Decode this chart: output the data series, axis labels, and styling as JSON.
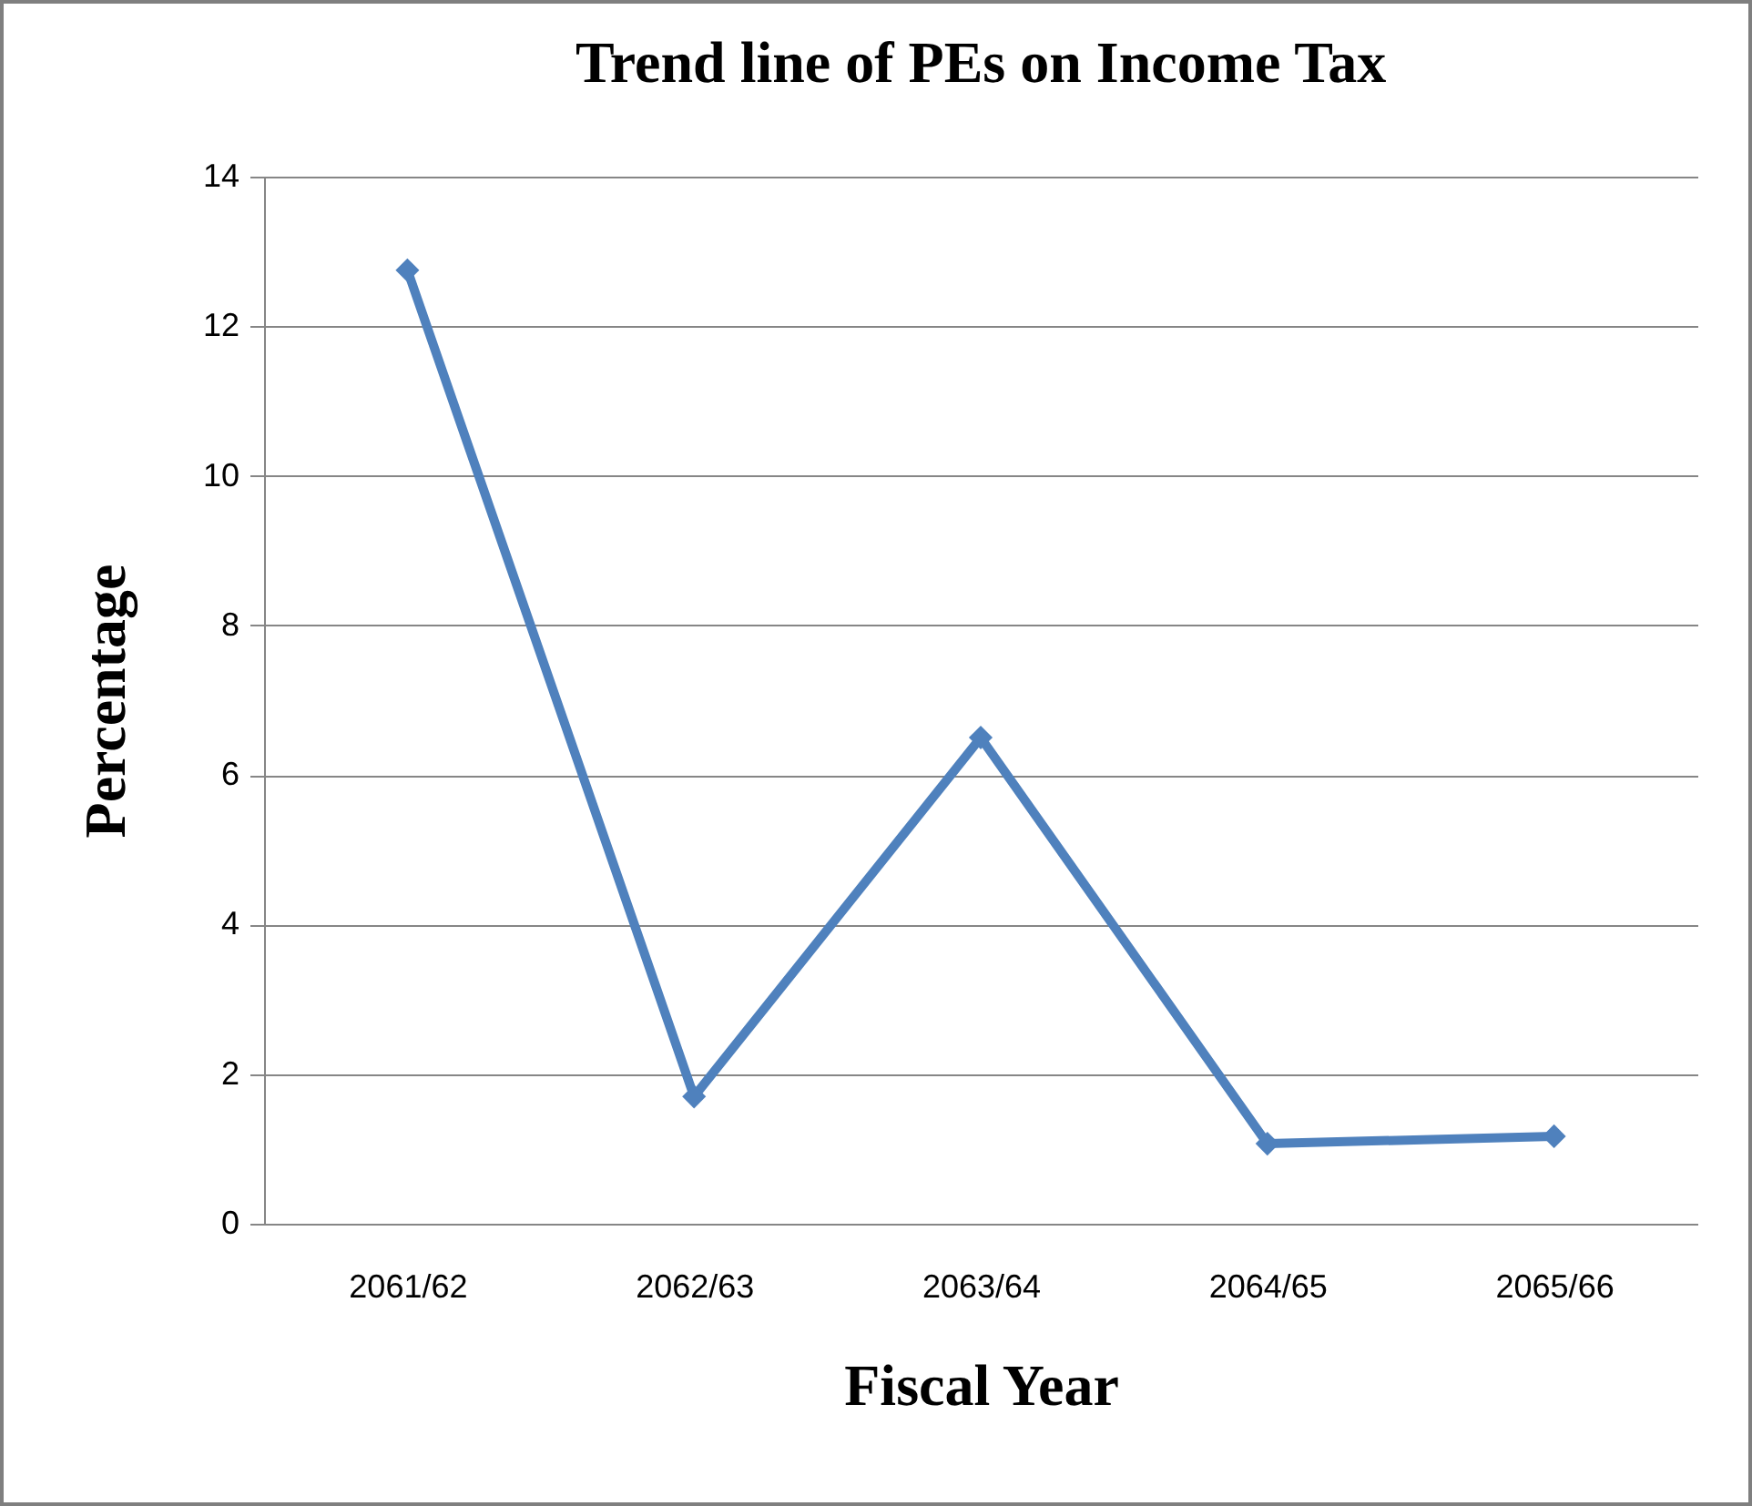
{
  "chart_data": {
    "type": "line",
    "title": "Trend line of PEs on Income Tax",
    "xlabel": "Fiscal Year",
    "ylabel": "Percentage",
    "categories": [
      "2061/62",
      "2062/63",
      "2063/64",
      "2064/65",
      "2065/66"
    ],
    "series": [
      {
        "color": "#4f81bd",
        "values": [
          12.75,
          1.7,
          6.5,
          1.07,
          1.17
        ]
      }
    ],
    "ylim": [
      0,
      14
    ],
    "yticks": [
      0,
      2,
      4,
      6,
      8,
      10,
      12,
      14
    ],
    "grid": "y",
    "marker": "diamond",
    "line_style": "solid"
  }
}
